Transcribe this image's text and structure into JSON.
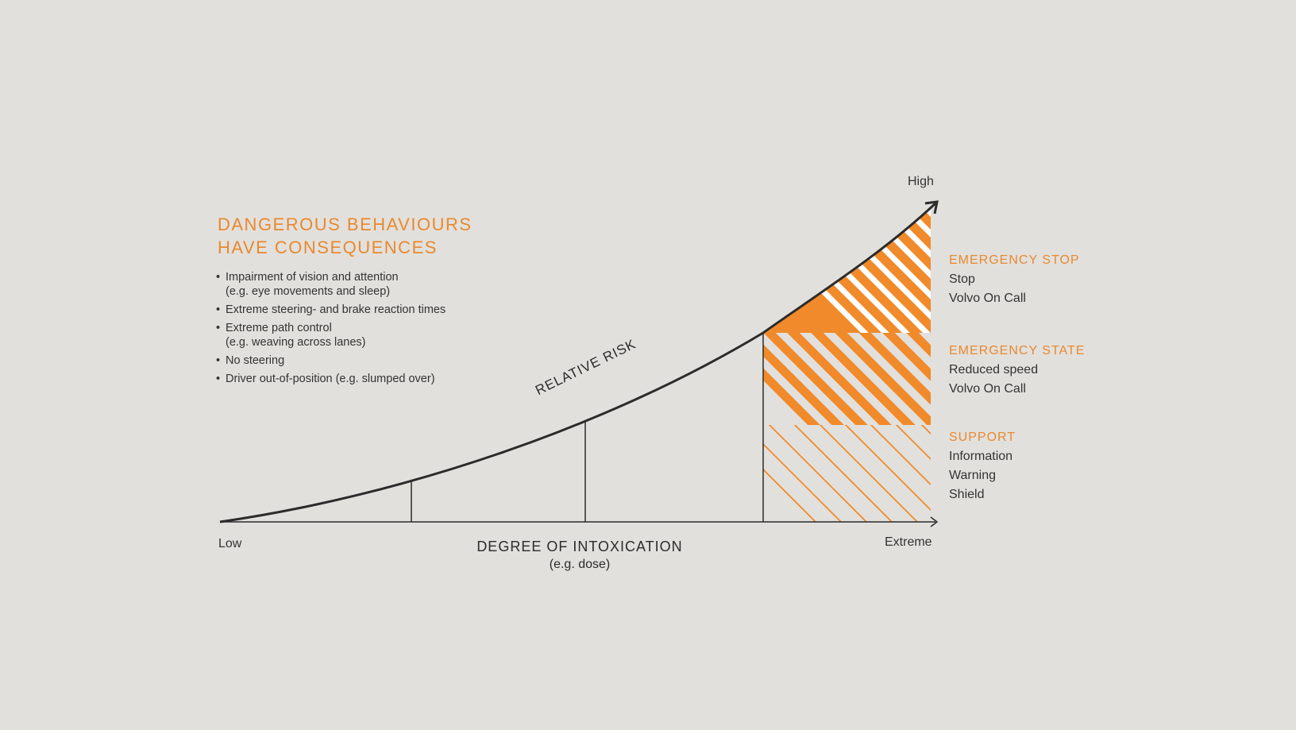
{
  "heading": {
    "line1": "DANGEROUS BEHAVIOURS",
    "line2": "HAVE CONSEQUENCES"
  },
  "behaviours": [
    {
      "line1": "Impairment of vision and attention",
      "line2": "(e.g. eye movements and sleep)"
    },
    {
      "line1": "Extreme steering- and brake reaction times",
      "line2": ""
    },
    {
      "line1": "Extreme path control",
      "line2": "(e.g. weaving across lanes)"
    },
    {
      "line1": "No steering",
      "line2": ""
    },
    {
      "line1": "Driver out-of-position (e.g. slumped over)",
      "line2": ""
    }
  ],
  "curve_label": "RELATIVE RISK",
  "axis": {
    "low": "Low",
    "extreme": "Extreme",
    "high": "High",
    "title": "DEGREE OF INTOXICATION",
    "subtitle": "(e.g. dose)"
  },
  "zones": {
    "stop": {
      "title": "EMERGENCY STOP",
      "items": [
        "Stop",
        "Volvo On Call"
      ]
    },
    "state": {
      "title": "EMERGENCY STATE",
      "items": [
        "Reduced speed",
        "Volvo On Call"
      ]
    },
    "support": {
      "title": "SUPPORT",
      "items": [
        "Information",
        "Warning",
        "Shield"
      ]
    }
  },
  "colors": {
    "background": "#e2e0dc",
    "accent": "#e8892f",
    "line": "#2b2b2b"
  }
}
